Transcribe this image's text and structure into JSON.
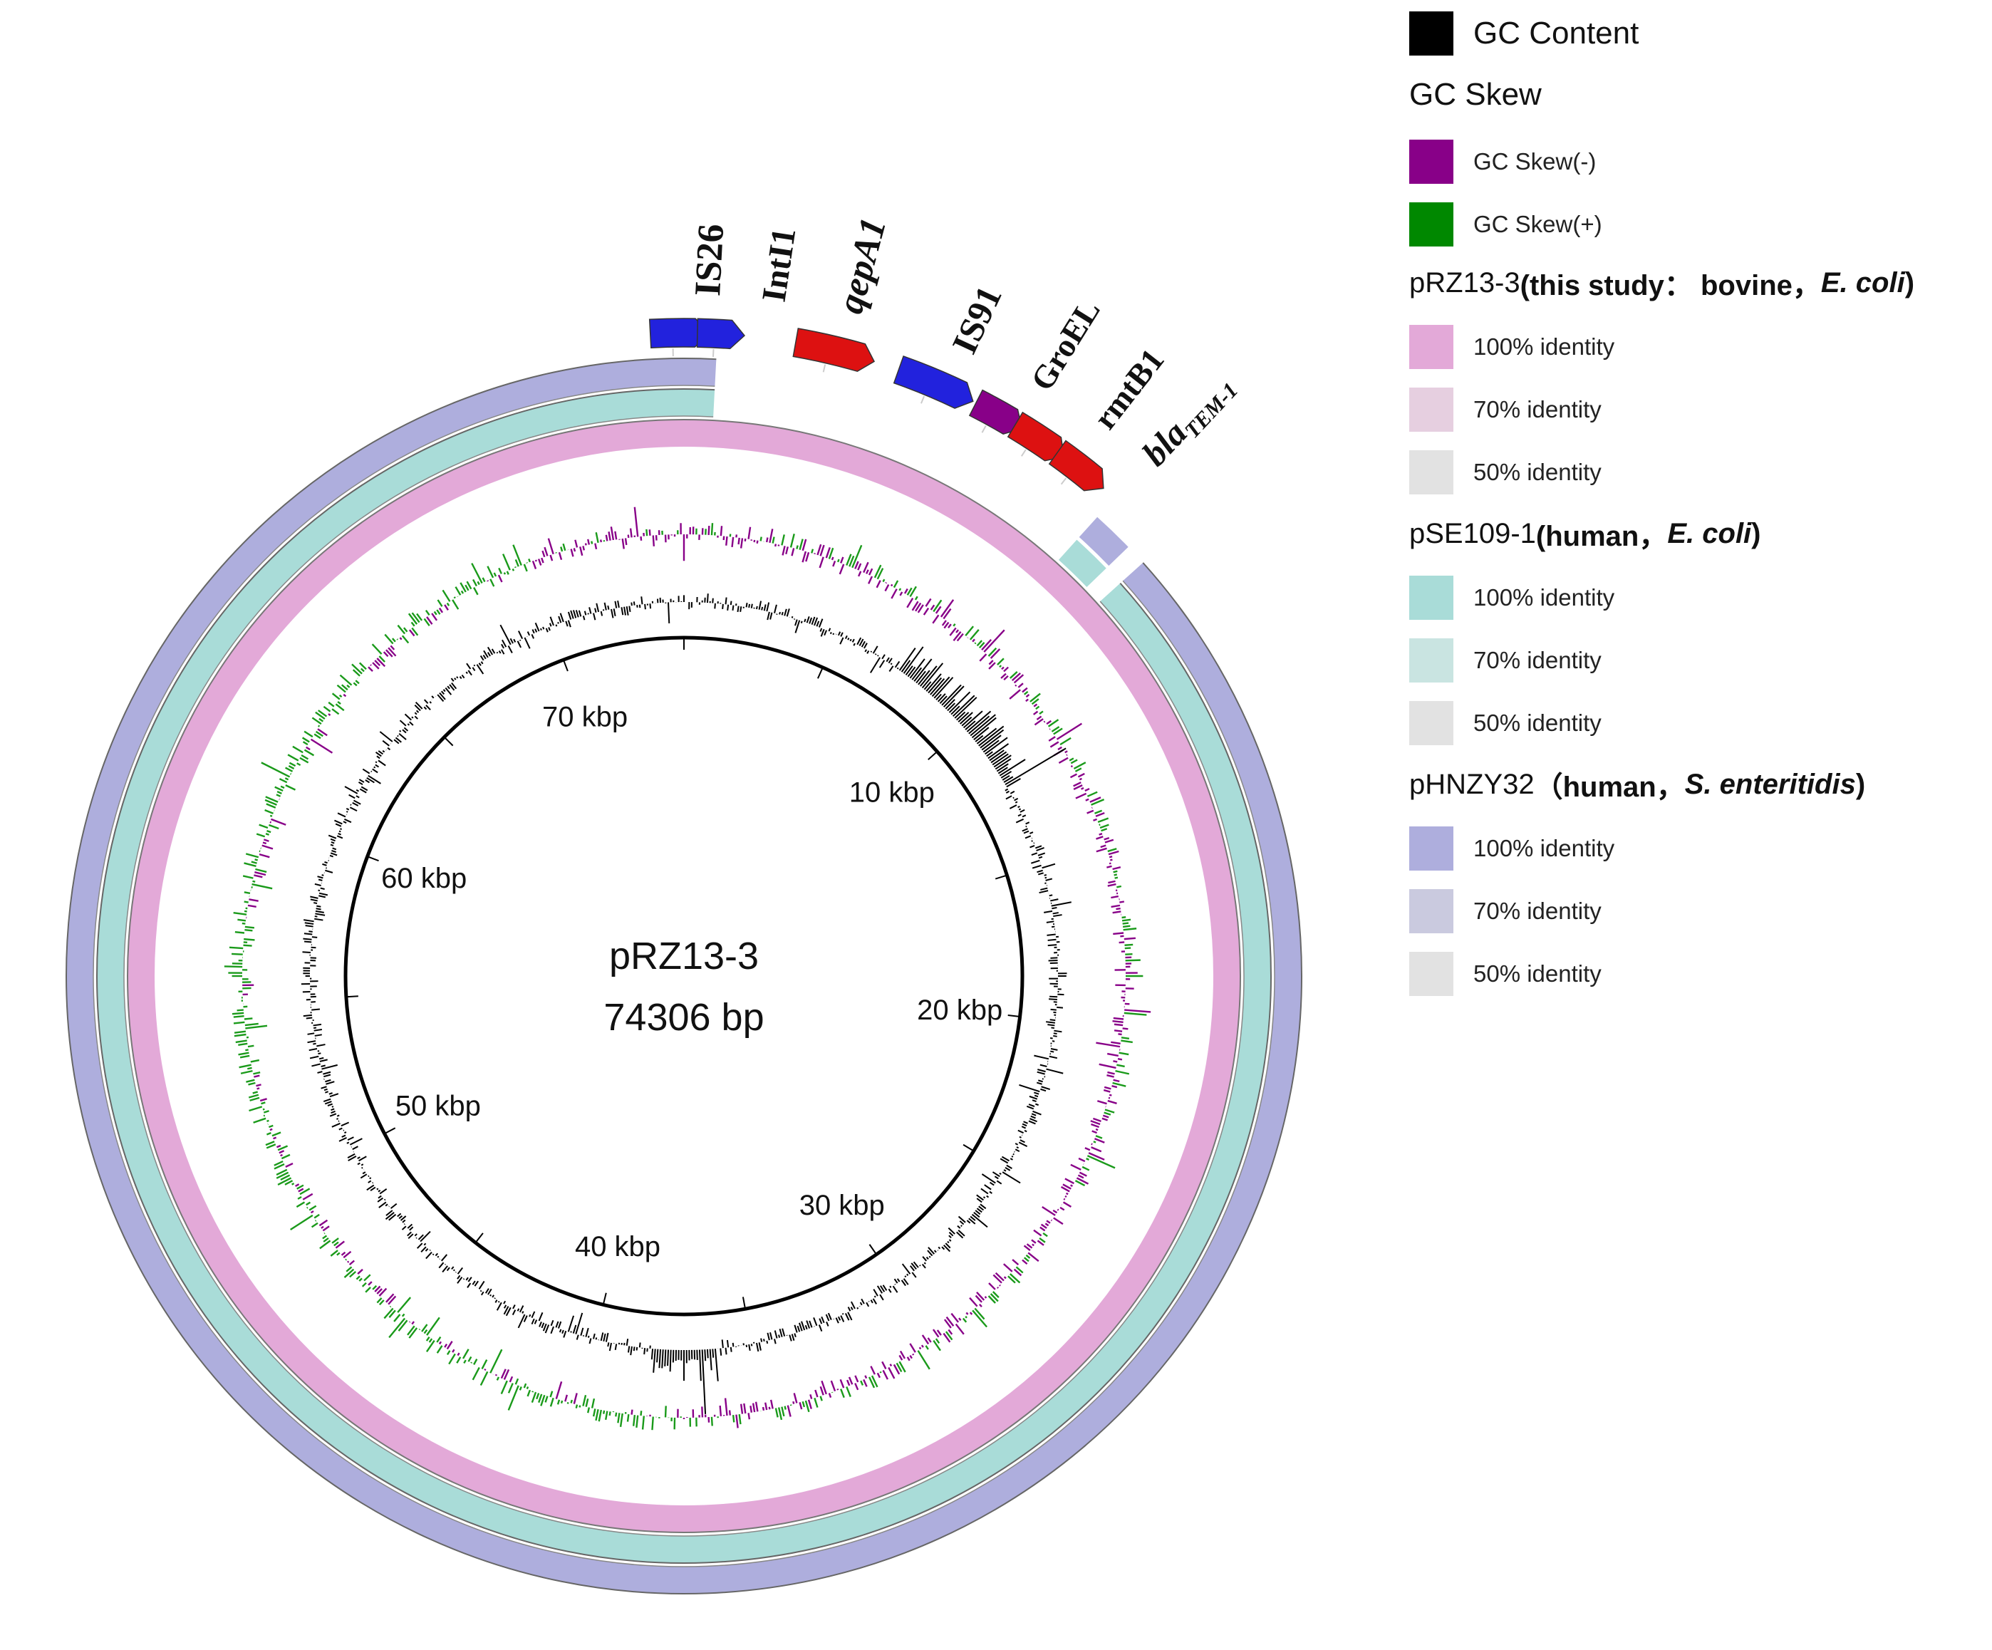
{
  "center": {
    "name": "pRZ13-3",
    "length": "74306 bp"
  },
  "plasmid_length_bp": 74306,
  "ticks": [
    "10 kbp",
    "20 kbp",
    "30 kbp",
    "40 kbp",
    "50 kbp",
    "60 kbp",
    "70 kbp"
  ],
  "genes": [
    {
      "label": "IS26",
      "italic": false,
      "color": "#2222dd",
      "sub": ""
    },
    {
      "label": "IntI1",
      "italic": false,
      "color": "#2222dd",
      "sub": ""
    },
    {
      "label": "qepA1",
      "italic": true,
      "color": "#dd1111",
      "sub": ""
    },
    {
      "label": "IS91",
      "italic": false,
      "color": "#2222dd",
      "sub": ""
    },
    {
      "label": "GroEL",
      "italic": false,
      "color": "#880088",
      "sub": ""
    },
    {
      "label": "rmtB1",
      "italic": false,
      "color": "#dd1111",
      "sub": ""
    },
    {
      "label": "bla",
      "italic": true,
      "color": "#dd1111",
      "sub": "TEM-1"
    }
  ],
  "legend": {
    "gc_content": {
      "label": "GC Content",
      "color": "#000000"
    },
    "gc_skew": {
      "title": "GC Skew",
      "neg": {
        "label": "GC Skew(-)",
        "color": "#880088"
      },
      "pos": {
        "label": "GC Skew(+)",
        "color": "#008800"
      }
    },
    "rings": [
      {
        "name": "pRZ13-3",
        "desc_bold": "(this study： bovine，",
        "desc_italic": "E. coli",
        "desc_end": ")",
        "entries": [
          {
            "label": "100% identity",
            "color": "#e3a9d8"
          },
          {
            "label": "70% identity",
            "color": "#e6cfe0"
          },
          {
            "label": "50% identity",
            "color": "#e2e2e2"
          }
        ]
      },
      {
        "name": "pSE109-1",
        "desc_bold": "(human，",
        "desc_italic": "E. coli",
        "desc_end": ")",
        "entries": [
          {
            "label": "100% identity",
            "color": "#a9dcd8"
          },
          {
            "label": "70% identity",
            "color": "#c9e4e1"
          },
          {
            "label": "50% identity",
            "color": "#e2e2e2"
          }
        ]
      },
      {
        "name": "pHNZY32",
        "desc_bold": "（human，",
        "desc_italic": "S. enteritidis",
        "desc_end": ")",
        "entries": [
          {
            "label": "100% identity",
            "color": "#aeaedd"
          },
          {
            "label": "70% identity",
            "color": "#cacadf"
          },
          {
            "label": "50% identity",
            "color": "#e2e2e2"
          }
        ]
      }
    ]
  }
}
